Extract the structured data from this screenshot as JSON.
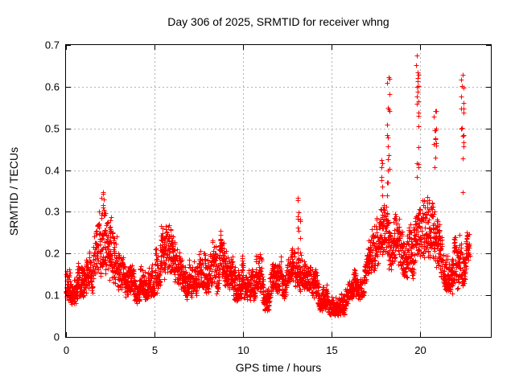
{
  "chart_data": {
    "type": "scatter",
    "title": "Day 306 of 2025, SRMTID for receiver whng",
    "xlabel": "GPS time / hours",
    "ylabel": "SRMTID / TECUs",
    "xlim": [
      0,
      24
    ],
    "ylim": [
      0,
      0.7
    ],
    "xticks": {
      "values": [
        0,
        5,
        10,
        15,
        20
      ],
      "labels": [
        "0",
        "5",
        "10",
        "15",
        "20"
      ]
    },
    "yticks": {
      "values": [
        0,
        0.1,
        0.2,
        0.3,
        0.4,
        0.5,
        0.6,
        0.7
      ],
      "labels": [
        "0",
        "0.1",
        "0.2",
        "0.3",
        "0.4",
        "0.5",
        "0.6",
        "0.7"
      ]
    },
    "grid": true,
    "legend": "none",
    "colors": {
      "marker": "#ff0000",
      "grid": "#b3b3b3",
      "frame": "#000000",
      "background": "#ffffff",
      "text": "#000000"
    },
    "marker": {
      "shape": "plus",
      "size": 6
    },
    "series_name": "SRMTID",
    "sampling": {
      "t_start": 0,
      "t_end": 22.8,
      "step_hours": 0.0083333,
      "extra_point_prob": 0.35,
      "seed": 306
    },
    "envelope_keyframes": [
      [
        0.0,
        0.08,
        0.22
      ],
      [
        0.4,
        0.08,
        0.2
      ],
      [
        0.8,
        0.07,
        0.17
      ],
      [
        1.2,
        0.09,
        0.21
      ],
      [
        1.6,
        0.1,
        0.25
      ],
      [
        1.9,
        0.11,
        0.31
      ],
      [
        2.1,
        0.12,
        0.35
      ],
      [
        2.4,
        0.1,
        0.31
      ],
      [
        2.7,
        0.09,
        0.27
      ],
      [
        3.0,
        0.08,
        0.21
      ],
      [
        3.5,
        0.07,
        0.17
      ],
      [
        4.0,
        0.08,
        0.19
      ],
      [
        4.5,
        0.09,
        0.23
      ],
      [
        5.0,
        0.1,
        0.26
      ],
      [
        5.4,
        0.11,
        0.3
      ],
      [
        5.8,
        0.11,
        0.28
      ],
      [
        6.2,
        0.1,
        0.22
      ],
      [
        6.7,
        0.08,
        0.18
      ],
      [
        7.2,
        0.1,
        0.26
      ],
      [
        7.6,
        0.1,
        0.28
      ],
      [
        8.0,
        0.1,
        0.24
      ],
      [
        8.4,
        0.1,
        0.28
      ],
      [
        8.8,
        0.1,
        0.25
      ],
      [
        9.3,
        0.08,
        0.2
      ],
      [
        9.8,
        0.09,
        0.24
      ],
      [
        10.3,
        0.09,
        0.21
      ],
      [
        10.8,
        0.08,
        0.22
      ],
      [
        11.3,
        0.06,
        0.18
      ],
      [
        11.8,
        0.08,
        0.18
      ],
      [
        12.3,
        0.09,
        0.2
      ],
      [
        12.8,
        0.1,
        0.22
      ],
      [
        13.2,
        0.09,
        0.21
      ],
      [
        13.6,
        0.08,
        0.18
      ],
      [
        14.1,
        0.07,
        0.17
      ],
      [
        14.6,
        0.06,
        0.15
      ],
      [
        15.1,
        0.05,
        0.13
      ],
      [
        15.6,
        0.05,
        0.14
      ],
      [
        16.1,
        0.06,
        0.15
      ],
      [
        16.6,
        0.09,
        0.19
      ],
      [
        17.1,
        0.11,
        0.24
      ],
      [
        17.6,
        0.13,
        0.3
      ],
      [
        18.0,
        0.15,
        0.34
      ],
      [
        18.5,
        0.16,
        0.35
      ],
      [
        19.0,
        0.14,
        0.31
      ],
      [
        19.5,
        0.13,
        0.32
      ],
      [
        20.0,
        0.13,
        0.33
      ],
      [
        20.5,
        0.13,
        0.34
      ],
      [
        21.0,
        0.13,
        0.32
      ],
      [
        21.5,
        0.11,
        0.27
      ],
      [
        22.0,
        0.1,
        0.29
      ],
      [
        22.4,
        0.12,
        0.3
      ],
      [
        22.8,
        0.13,
        0.25
      ]
    ],
    "spikes": [
      {
        "t": 2.05,
        "dt": 0.1,
        "n": 8,
        "y0": 0.28,
        "y1": 0.35
      },
      {
        "t": 13.15,
        "dt": 0.08,
        "n": 13,
        "y0": 0.2,
        "y1": 0.35
      },
      {
        "t": 17.85,
        "dt": 0.05,
        "n": 7,
        "y0": 0.3,
        "y1": 0.45
      },
      {
        "t": 18.2,
        "dt": 0.07,
        "n": 17,
        "y0": 0.34,
        "y1": 0.63
      },
      {
        "t": 19.85,
        "dt": 0.07,
        "n": 20,
        "y0": 0.34,
        "y1": 0.685
      },
      {
        "t": 20.85,
        "dt": 0.08,
        "n": 13,
        "y0": 0.36,
        "y1": 0.55
      },
      {
        "t": 22.4,
        "dt": 0.08,
        "n": 17,
        "y0": 0.31,
        "y1": 0.645
      }
    ]
  }
}
